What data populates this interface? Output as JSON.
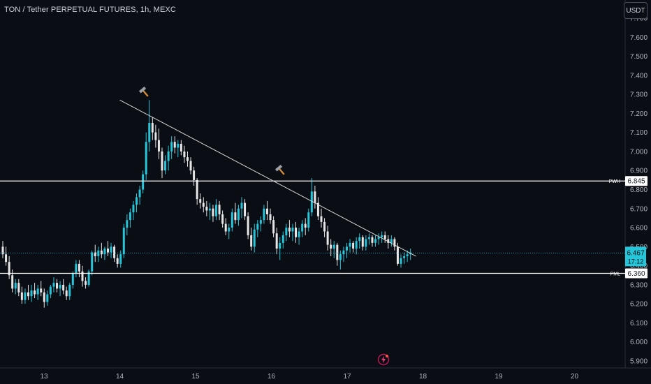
{
  "header": {
    "symbol_title": "TON / Tether PERPETUAL FUTURES, 1h, MEXC",
    "currency_button": "USDT"
  },
  "chart_data": {
    "type": "candlestick",
    "title": "TON / Tether PERPETUAL FUTURES, 1h, MEXC",
    "y_ticks": [
      "5.900",
      "6.000",
      "6.100",
      "6.200",
      "6.300",
      "6.400",
      "6.500",
      "6.600",
      "6.700",
      "6.800",
      "6.900",
      "7.000",
      "7.100",
      "7.200",
      "7.300",
      "7.400",
      "7.500",
      "7.600",
      "7.700"
    ],
    "ylim": [
      5.86,
      7.72
    ],
    "x_ticks": [
      "13",
      "14",
      "15",
      "16",
      "17",
      "18",
      "19",
      "20"
    ],
    "levels": [
      {
        "label": "PWH",
        "value": 6.845,
        "value_text": "6.845"
      },
      {
        "label": "PML",
        "value": 6.36,
        "value_text": "6.360"
      }
    ],
    "last_price": {
      "value": 6.467,
      "value_text": "6.467",
      "countdown": "17:12"
    },
    "trendline": {
      "from": {
        "date": "14",
        "price": 7.27
      },
      "to": {
        "date": "18",
        "price": 6.45
      }
    },
    "annotations": [
      {
        "type": "hammer-icon",
        "near": "swing high 7.27"
      },
      {
        "type": "hammer-icon",
        "near": "lower high 6.86"
      }
    ],
    "bullish_color": "#26c6da",
    "bearish_color": "#e6e6e6",
    "candles_ohlc": [
      [
        6.5,
        6.53,
        6.44,
        6.46
      ],
      [
        6.46,
        6.5,
        6.4,
        6.42
      ],
      [
        6.42,
        6.45,
        6.33,
        6.35
      ],
      [
        6.35,
        6.38,
        6.26,
        6.28
      ],
      [
        6.28,
        6.33,
        6.25,
        6.31
      ],
      [
        6.31,
        6.33,
        6.24,
        6.26
      ],
      [
        6.26,
        6.29,
        6.2,
        6.22
      ],
      [
        6.22,
        6.28,
        6.2,
        6.26
      ],
      [
        6.26,
        6.3,
        6.22,
        6.24
      ],
      [
        6.24,
        6.3,
        6.21,
        6.27
      ],
      [
        6.27,
        6.31,
        6.23,
        6.25
      ],
      [
        6.25,
        6.3,
        6.22,
        6.28
      ],
      [
        6.28,
        6.32,
        6.24,
        6.26
      ],
      [
        6.26,
        6.28,
        6.18,
        6.21
      ],
      [
        6.21,
        6.27,
        6.19,
        6.25
      ],
      [
        6.25,
        6.3,
        6.23,
        6.29
      ],
      [
        6.29,
        6.34,
        6.26,
        6.31
      ],
      [
        6.31,
        6.33,
        6.26,
        6.28
      ],
      [
        6.28,
        6.32,
        6.24,
        6.3
      ],
      [
        6.3,
        6.33,
        6.25,
        6.27
      ],
      [
        6.27,
        6.29,
        6.22,
        6.24
      ],
      [
        6.24,
        6.31,
        6.22,
        6.3
      ],
      [
        6.3,
        6.37,
        6.28,
        6.36
      ],
      [
        6.36,
        6.43,
        6.34,
        6.41
      ],
      [
        6.41,
        6.43,
        6.34,
        6.37
      ],
      [
        6.37,
        6.4,
        6.29,
        6.32
      ],
      [
        6.32,
        6.34,
        6.28,
        6.3
      ],
      [
        6.3,
        6.38,
        6.29,
        6.37
      ],
      [
        6.37,
        6.48,
        6.35,
        6.47
      ],
      [
        6.47,
        6.51,
        6.42,
        6.45
      ],
      [
        6.45,
        6.5,
        6.42,
        6.48
      ],
      [
        6.48,
        6.52,
        6.44,
        6.46
      ],
      [
        6.46,
        6.5,
        6.43,
        6.49
      ],
      [
        6.49,
        6.53,
        6.45,
        6.47
      ],
      [
        6.47,
        6.52,
        6.44,
        6.5
      ],
      [
        6.5,
        6.51,
        6.42,
        6.44
      ],
      [
        6.44,
        6.46,
        6.39,
        6.41
      ],
      [
        6.41,
        6.48,
        6.39,
        6.46
      ],
      [
        6.46,
        6.62,
        6.44,
        6.6
      ],
      [
        6.6,
        6.67,
        6.56,
        6.64
      ],
      [
        6.64,
        6.7,
        6.6,
        6.68
      ],
      [
        6.68,
        6.74,
        6.64,
        6.72
      ],
      [
        6.72,
        6.78,
        6.68,
        6.76
      ],
      [
        6.76,
        6.82,
        6.72,
        6.8
      ],
      [
        6.8,
        6.9,
        6.78,
        6.88
      ],
      [
        6.88,
        7.1,
        6.85,
        7.05
      ],
      [
        7.05,
        7.27,
        7.0,
        7.15
      ],
      [
        7.15,
        7.18,
        7.06,
        7.1
      ],
      [
        7.1,
        7.14,
        7.02,
        7.06
      ],
      [
        7.06,
        7.12,
        6.96,
        7.0
      ],
      [
        7.0,
        7.02,
        6.86,
        6.9
      ],
      [
        6.9,
        6.98,
        6.88,
        6.95
      ],
      [
        6.95,
        7.03,
        6.9,
        7.0
      ],
      [
        7.0,
        7.08,
        6.96,
        7.05
      ],
      [
        7.05,
        7.08,
        6.99,
        7.02
      ],
      [
        7.02,
        7.06,
        6.97,
        7.04
      ],
      [
        7.04,
        7.06,
        6.98,
        7.0
      ],
      [
        7.0,
        7.03,
        6.94,
        6.97
      ],
      [
        6.97,
        7.0,
        6.92,
        6.95
      ],
      [
        6.95,
        6.97,
        6.88,
        6.9
      ],
      [
        6.9,
        6.92,
        6.82,
        6.85
      ],
      [
        6.85,
        6.86,
        6.72,
        6.75
      ],
      [
        6.75,
        6.78,
        6.7,
        6.73
      ],
      [
        6.73,
        6.76,
        6.68,
        6.71
      ],
      [
        6.71,
        6.74,
        6.66,
        6.69
      ],
      [
        6.69,
        6.73,
        6.64,
        6.7
      ],
      [
        6.7,
        6.72,
        6.63,
        6.66
      ],
      [
        6.66,
        6.75,
        6.64,
        6.72
      ],
      [
        6.72,
        6.74,
        6.64,
        6.67
      ],
      [
        6.67,
        6.69,
        6.6,
        6.62
      ],
      [
        6.62,
        6.65,
        6.56,
        6.58
      ],
      [
        6.58,
        6.62,
        6.54,
        6.6
      ],
      [
        6.6,
        6.7,
        6.58,
        6.68
      ],
      [
        6.68,
        6.73,
        6.62,
        6.64
      ],
      [
        6.64,
        6.72,
        6.61,
        6.7
      ],
      [
        6.7,
        6.76,
        6.65,
        6.73
      ],
      [
        6.73,
        6.75,
        6.64,
        6.66
      ],
      [
        6.66,
        6.68,
        6.54,
        6.56
      ],
      [
        6.56,
        6.6,
        6.48,
        6.5
      ],
      [
        6.5,
        6.62,
        6.47,
        6.59
      ],
      [
        6.59,
        6.64,
        6.55,
        6.62
      ],
      [
        6.62,
        6.66,
        6.58,
        6.64
      ],
      [
        6.64,
        6.72,
        6.62,
        6.7
      ],
      [
        6.7,
        6.74,
        6.64,
        6.67
      ],
      [
        6.67,
        6.7,
        6.62,
        6.64
      ],
      [
        6.64,
        6.66,
        6.55,
        6.57
      ],
      [
        6.57,
        6.6,
        6.46,
        6.49
      ],
      [
        6.49,
        6.55,
        6.43,
        6.52
      ],
      [
        6.52,
        6.58,
        6.49,
        6.56
      ],
      [
        6.56,
        6.62,
        6.53,
        6.6
      ],
      [
        6.6,
        6.64,
        6.55,
        6.58
      ],
      [
        6.58,
        6.62,
        6.53,
        6.6
      ],
      [
        6.6,
        6.63,
        6.52,
        6.55
      ],
      [
        6.55,
        6.6,
        6.51,
        6.58
      ],
      [
        6.58,
        6.64,
        6.55,
        6.62
      ],
      [
        6.62,
        6.65,
        6.56,
        6.6
      ],
      [
        6.6,
        6.7,
        6.58,
        6.68
      ],
      [
        6.68,
        6.86,
        6.66,
        6.79
      ],
      [
        6.79,
        6.82,
        6.7,
        6.73
      ],
      [
        6.73,
        6.76,
        6.64,
        6.66
      ],
      [
        6.66,
        6.7,
        6.6,
        6.63
      ],
      [
        6.63,
        6.65,
        6.55,
        6.58
      ],
      [
        6.58,
        6.61,
        6.48,
        6.51
      ],
      [
        6.51,
        6.54,
        6.45,
        6.49
      ],
      [
        6.49,
        6.53,
        6.44,
        6.51
      ],
      [
        6.51,
        6.52,
        6.4,
        6.43
      ],
      [
        6.43,
        6.48,
        6.38,
        6.46
      ],
      [
        6.46,
        6.5,
        6.42,
        6.48
      ],
      [
        6.48,
        6.52,
        6.44,
        6.5
      ],
      [
        6.5,
        6.54,
        6.47,
        6.52
      ],
      [
        6.52,
        6.53,
        6.47,
        6.49
      ],
      [
        6.49,
        6.55,
        6.46,
        6.53
      ],
      [
        6.53,
        6.57,
        6.49,
        6.55
      ],
      [
        6.55,
        6.56,
        6.48,
        6.5
      ],
      [
        6.5,
        6.56,
        6.48,
        6.54
      ],
      [
        6.54,
        6.57,
        6.51,
        6.55
      ],
      [
        6.55,
        6.56,
        6.5,
        6.52
      ],
      [
        6.52,
        6.56,
        6.5,
        6.54
      ],
      [
        6.54,
        6.57,
        6.51,
        6.55
      ],
      [
        6.55,
        6.58,
        6.52,
        6.56
      ],
      [
        6.56,
        6.58,
        6.52,
        6.54
      ],
      [
        6.54,
        6.56,
        6.49,
        6.52
      ],
      [
        6.52,
        6.56,
        6.5,
        6.54
      ],
      [
        6.54,
        6.55,
        6.48,
        6.5
      ],
      [
        6.5,
        6.52,
        6.4,
        6.41
      ],
      [
        6.41,
        6.46,
        6.39,
        6.44
      ],
      [
        6.44,
        6.47,
        6.41,
        6.45
      ],
      [
        6.45,
        6.48,
        6.42,
        6.46
      ],
      [
        6.46,
        6.49,
        6.43,
        6.47
      ]
    ]
  }
}
